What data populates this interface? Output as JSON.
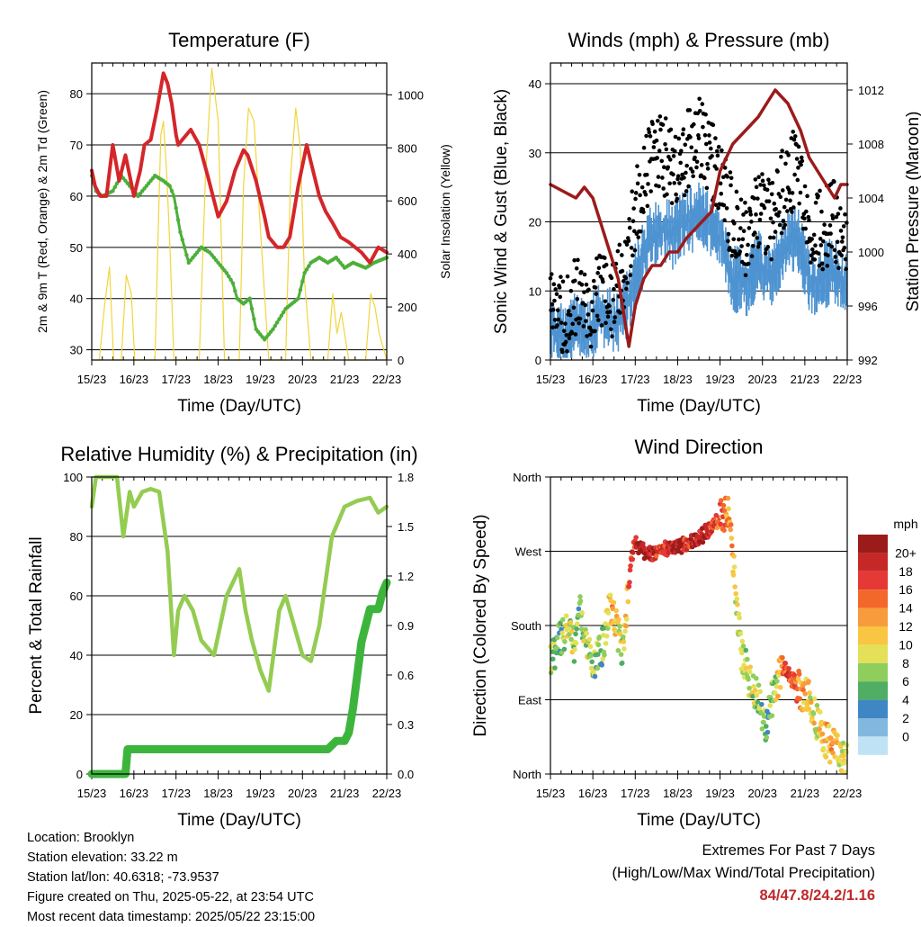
{
  "chart_data": [
    {
      "type": "line",
      "title": "Temperature (F)",
      "xlabel": "Time (Day/UTC)",
      "ylabel": "2m & 9m T (Red, Orange) & 2m Td (Green)",
      "ylabel_right": "Solar Insolation (Yellow)",
      "x_ticks": [
        "15/23",
        "16/23",
        "17/23",
        "18/23",
        "19/23",
        "20/23",
        "21/23",
        "22/23"
      ],
      "ylim": [
        28,
        86
      ],
      "y_ticks": [
        30,
        40,
        50,
        60,
        70,
        80
      ],
      "ylim_right": [
        0,
        1120
      ],
      "y_ticks_right": [
        0,
        200,
        400,
        600,
        800,
        1000
      ],
      "grid": "horizontal",
      "series": [
        {
          "color": "#d4262a",
          "x": [
            0,
            0.08,
            0.2,
            0.35,
            0.5,
            0.65,
            0.8,
            1.0,
            1.15,
            1.25,
            1.4,
            1.55,
            1.7,
            1.8,
            1.9,
            2.0,
            2.05,
            2.15,
            2.35,
            2.55,
            2.75,
            3.0,
            3.2,
            3.4,
            3.6,
            3.7,
            3.9,
            4.1,
            4.2,
            4.4,
            4.55,
            4.7,
            4.9,
            5.1,
            5.25,
            5.4,
            5.55,
            5.7,
            5.9,
            6.1,
            6.4,
            6.6,
            6.8,
            7.0
          ],
          "values": [
            65,
            62,
            60,
            60,
            70,
            63,
            68,
            60,
            65,
            70,
            71,
            77,
            84,
            82,
            78,
            72,
            70,
            71,
            73,
            70,
            64,
            56,
            59,
            65,
            69,
            68,
            63,
            56,
            52,
            50,
            50,
            52,
            62,
            70,
            65,
            60,
            57,
            55,
            52,
            51,
            49,
            47,
            50,
            49
          ]
        },
        {
          "color": "#4caf3a",
          "x": [
            0,
            0.1,
            0.25,
            0.5,
            0.7,
            0.9,
            1.1,
            1.3,
            1.5,
            1.7,
            1.85,
            1.95,
            2.1,
            2.3,
            2.6,
            2.8,
            3.0,
            3.2,
            3.35,
            3.45,
            3.6,
            3.75,
            3.9,
            4.1,
            4.3,
            4.6,
            4.9,
            5.05,
            5.2,
            5.4,
            5.6,
            5.8,
            6.0,
            6.2,
            6.5,
            6.7,
            7.0
          ],
          "values": [
            64,
            61,
            60,
            61,
            64,
            62,
            60,
            62,
            64,
            63,
            62,
            60,
            53,
            47,
            50,
            49,
            47,
            45,
            43,
            40,
            39,
            40,
            34,
            32,
            34,
            38,
            40,
            45,
            47,
            48,
            47,
            48,
            46,
            47,
            46,
            47,
            48
          ]
        },
        {
          "color": "#f2d53c",
          "x": [
            0,
            0.18,
            0.3,
            0.42,
            0.52,
            0.7,
            0.82,
            0.94,
            1.02,
            1.2,
            1.5,
            1.58,
            1.64,
            1.7,
            1.78,
            1.86,
            1.95,
            2.2,
            2.55,
            2.7,
            2.85,
            3.0,
            3.15,
            3.5,
            3.6,
            3.72,
            3.85,
            4.0,
            4.2,
            4.6,
            4.72,
            4.84,
            4.95,
            5.05,
            5.2,
            5.6,
            5.72,
            5.82,
            5.92,
            6.1,
            6.5,
            6.62,
            6.72,
            6.82,
            7.0
          ],
          "values_right": [
            0,
            0,
            200,
            350,
            0,
            0,
            320,
            250,
            0,
            0,
            0,
            500,
            850,
            900,
            700,
            400,
            0,
            0,
            0,
            700,
            1100,
            900,
            0,
            0,
            650,
            950,
            900,
            500,
            0,
            0,
            700,
            950,
            800,
            300,
            0,
            0,
            250,
            100,
            180,
            0,
            0,
            250,
            200,
            100,
            0
          ]
        }
      ]
    },
    {
      "type": "scatter",
      "title": "Winds (mph) & Pressure (mb)",
      "xlabel": "Time (Day/UTC)",
      "ylabel": "Sonic Wind & Gust (Blue, Black)",
      "ylabel_right": "Station Pressure (Maroon)",
      "x_ticks": [
        "15/23",
        "16/23",
        "17/23",
        "18/23",
        "19/23",
        "20/23",
        "21/23",
        "22/23"
      ],
      "ylim": [
        0,
        43
      ],
      "y_ticks": [
        0,
        10,
        20,
        30,
        40
      ],
      "ylim_right": [
        992,
        1014
      ],
      "y_ticks_right": [
        992,
        996,
        1000,
        1004,
        1008,
        1012
      ],
      "grid": "horizontal",
      "series": [
        {
          "color": "#000000",
          "x": [
            0,
            0.3,
            0.6,
            0.9,
            1.2,
            1.5,
            1.8,
            2.0,
            2.3,
            2.6,
            2.9,
            3.2,
            3.5,
            3.8,
            4.0,
            4.3,
            4.6,
            4.9,
            5.2,
            5.5,
            5.8,
            6.1,
            6.4,
            6.7,
            7.0
          ],
          "values": [
            8,
            6,
            9,
            7,
            11,
            8,
            15,
            22,
            28,
            30,
            28,
            30,
            33,
            29,
            26,
            20,
            18,
            22,
            20,
            25,
            28,
            18,
            19,
            20,
            16
          ]
        },
        {
          "color": "#4e93d1",
          "x": [
            0,
            0.3,
            0.6,
            0.9,
            1.2,
            1.5,
            1.8,
            2.0,
            2.3,
            2.6,
            2.9,
            3.2,
            3.5,
            3.8,
            4.0,
            4.3,
            4.6,
            4.9,
            5.2,
            5.5,
            5.8,
            6.1,
            6.4,
            6.7,
            7.0
          ],
          "values": [
            5,
            3,
            5,
            4,
            7,
            5,
            8,
            12,
            17,
            19,
            18,
            20,
            21,
            19,
            17,
            12,
            11,
            14,
            12,
            16,
            18,
            11,
            12,
            13,
            10
          ]
        },
        {
          "color": "#9b1b1b",
          "x": [
            0,
            0.3,
            0.6,
            0.8,
            1.0,
            1.2,
            1.4,
            1.6,
            1.75,
            1.85,
            2.0,
            2.2,
            2.4,
            2.6,
            2.8,
            3.0,
            3.2,
            3.5,
            3.8,
            4.0,
            4.3,
            4.6,
            4.9,
            5.1,
            5.3,
            5.6,
            5.9,
            6.1,
            6.3,
            6.5,
            6.7,
            6.85,
            7.0
          ],
          "values_right": [
            1005,
            1004.5,
            1004,
            1004.8,
            1004,
            1002,
            1000,
            998,
            995,
            993,
            996,
            998,
            999,
            999,
            1000,
            1000,
            1001,
            1002,
            1003,
            1006,
            1008,
            1009,
            1010,
            1011,
            1012,
            1011,
            1009,
            1007,
            1006,
            1005,
            1004,
            1005,
            1005
          ]
        }
      ]
    },
    {
      "type": "line",
      "title": "Relative Humidity (%) & Precipitation (in)",
      "xlabel": "Time (Day/UTC)",
      "ylabel": "Percent & Total Rainfall",
      "x_ticks": [
        "15/23",
        "16/23",
        "17/23",
        "18/23",
        "19/23",
        "20/23",
        "21/23",
        "22/23"
      ],
      "ylim": [
        0,
        100
      ],
      "y_ticks": [
        0,
        20,
        40,
        60,
        80,
        100
      ],
      "ylim_right": [
        0,
        1.8
      ],
      "y_ticks_right": [
        "0.0",
        "0.3",
        "0.6",
        "0.9",
        "1.2",
        "1.5",
        "1.8"
      ],
      "grid": "horizontal",
      "series": [
        {
          "color": "#94cc52",
          "x": [
            0,
            0.1,
            0.3,
            0.6,
            0.75,
            0.9,
            1.0,
            1.2,
            1.4,
            1.6,
            1.8,
            1.95,
            2.05,
            2.2,
            2.4,
            2.6,
            2.9,
            3.2,
            3.5,
            3.65,
            3.8,
            4.0,
            4.2,
            4.45,
            4.6,
            4.8,
            5.0,
            5.2,
            5.4,
            5.7,
            6.0,
            6.3,
            6.6,
            6.8,
            7.0
          ],
          "values": [
            90,
            100,
            100,
            100,
            80,
            95,
            90,
            95,
            96,
            95,
            75,
            40,
            55,
            60,
            55,
            45,
            40,
            60,
            69,
            55,
            45,
            35,
            28,
            55,
            60,
            50,
            40,
            38,
            50,
            80,
            90,
            92,
            93,
            88,
            90
          ]
        },
        {
          "color": "#3db53d",
          "x": [
            0,
            0.5,
            0.8,
            0.85,
            1.0,
            2.0,
            3.0,
            4.0,
            5.0,
            5.6,
            5.8,
            6.0,
            6.1,
            6.2,
            6.4,
            6.6,
            6.8,
            6.9,
            7.0
          ],
          "values_right": [
            0,
            0,
            0,
            0.15,
            0.15,
            0.15,
            0.15,
            0.15,
            0.15,
            0.15,
            0.2,
            0.2,
            0.25,
            0.4,
            0.8,
            1.0,
            1.0,
            1.1,
            1.16
          ]
        }
      ]
    },
    {
      "type": "scatter",
      "title": "Wind Direction",
      "xlabel": "Time (Day/UTC)",
      "ylabel": "Direction (Colored By Speed)",
      "x_ticks": [
        "15/23",
        "16/23",
        "17/23",
        "18/23",
        "19/23",
        "20/23",
        "21/23",
        "22/23"
      ],
      "y_ticks": [
        "North",
        "East",
        "South",
        "West",
        "North"
      ],
      "ylim": [
        0,
        360
      ],
      "grid": "horizontal",
      "colorbar_unit": "mph",
      "colorbar_labels": [
        "20+",
        "18",
        "16",
        "14",
        "12",
        "10",
        "8",
        "6",
        "4",
        "2",
        "0"
      ],
      "colorbar_colors": [
        "#9b1b1b",
        "#c62828",
        "#e53935",
        "#f4672a",
        "#f89b3c",
        "#f8c642",
        "#e4e057",
        "#8fce5c",
        "#4fae63",
        "#3f87c4",
        "#82b8e0",
        "#bfe3f4"
      ],
      "series": [
        {
          "x": [
            0.05,
            0.2,
            0.4,
            0.6,
            0.7,
            0.8,
            1.0,
            1.2,
            1.3,
            1.4,
            1.5,
            1.6,
            1.7,
            1.8,
            1.9,
            2.0,
            2.2,
            2.4,
            2.6,
            2.8,
            3.0,
            3.2,
            3.4,
            3.6,
            3.8,
            4.0,
            4.2,
            4.5,
            4.7,
            4.9,
            5.1,
            5.3,
            5.5,
            5.7,
            5.9,
            6.1,
            6.3,
            6.5,
            6.7,
            6.9
          ],
          "values": [
            140,
            160,
            180,
            150,
            200,
            170,
            130,
            150,
            170,
            200,
            190,
            170,
            150,
            200,
            260,
            280,
            270,
            265,
            270,
            275,
            275,
            280,
            285,
            290,
            300,
            310,
            320,
            150,
            110,
            90,
            60,
            110,
            130,
            115,
            100,
            90,
            60,
            40,
            30,
            20
          ],
          "speed": [
            6,
            4,
            8,
            6,
            4,
            8,
            6,
            4,
            8,
            10,
            12,
            8,
            6,
            10,
            16,
            18,
            20,
            18,
            16,
            18,
            20,
            16,
            18,
            20,
            16,
            14,
            12,
            6,
            8,
            6,
            4,
            6,
            14,
            16,
            12,
            10,
            8,
            12,
            10,
            8
          ]
        }
      ]
    }
  ],
  "info": {
    "location": "Location: Brooklyn",
    "elevation": "Station elevation: 33.22 m",
    "latlon": "Station lat/lon: 40.6318; -73.9537",
    "created": "Figure created on Thu, 2025-05-22, at 23:54 UTC",
    "recent": "Most recent data timestamp: 2025/05/22 23:15:00"
  },
  "extremes": {
    "title": "Extremes For Past 7 Days",
    "subtitle": "(High/Low/Max Wind/Total Precipitation)",
    "values": "84/47.8/24.2/1.16"
  }
}
